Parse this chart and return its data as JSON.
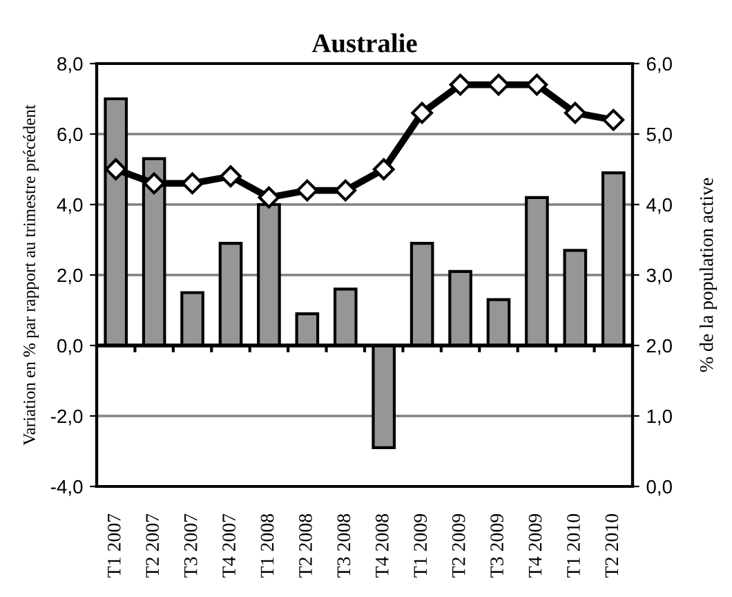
{
  "chart_data": {
    "type": "bar",
    "title": "Australie",
    "ylabel": "Variation en % par rapport au trimestre précédent",
    "y2label": "% de la population active",
    "categories": [
      "T1 2007",
      "T2 2007",
      "T3 2007",
      "T4 2007",
      "T1 2008",
      "T2 2008",
      "T3 2008",
      "T4 2008",
      "T1 2009",
      "T2 2009",
      "T3 2009",
      "T4 2009",
      "T1 2010",
      "T2 2010"
    ],
    "series": [
      {
        "color": "#969696",
        "values": [
          7.0,
          5.3,
          1.5,
          2.9,
          4.0,
          0.9,
          1.6,
          -2.9,
          2.9,
          2.1,
          1.3,
          4.2,
          2.7,
          4.9
        ]
      },
      {
        "type": "line",
        "axis": "y2",
        "color": "#000000",
        "marker": "diamond",
        "values": [
          4.5,
          4.3,
          4.3,
          4.4,
          4.1,
          4.2,
          4.2,
          4.5,
          5.3,
          5.7,
          5.7,
          5.7,
          5.3,
          5.2
        ]
      }
    ],
    "ylim": [
      -4,
      8
    ],
    "yticks": [
      {
        "value": -4,
        "label": "-4,0"
      },
      {
        "value": -2,
        "label": "-2,0"
      },
      {
        "value": 0,
        "label": "0,0"
      },
      {
        "value": 2,
        "label": "2,0"
      },
      {
        "value": 4,
        "label": "4,0"
      },
      {
        "value": 6,
        "label": "6,0"
      },
      {
        "value": 8,
        "label": "8,0"
      }
    ],
    "y2lim": [
      0,
      6
    ],
    "y2ticks": [
      {
        "value": 0,
        "label": "0,0"
      },
      {
        "value": 1,
        "label": "1,0"
      },
      {
        "value": 2,
        "label": "2,0"
      },
      {
        "value": 3,
        "label": "3,0"
      },
      {
        "value": 4,
        "label": "4,0"
      },
      {
        "value": 5,
        "label": "5,0"
      },
      {
        "value": 6,
        "label": "6,0"
      }
    ],
    "grid": "y",
    "legend": false
  }
}
